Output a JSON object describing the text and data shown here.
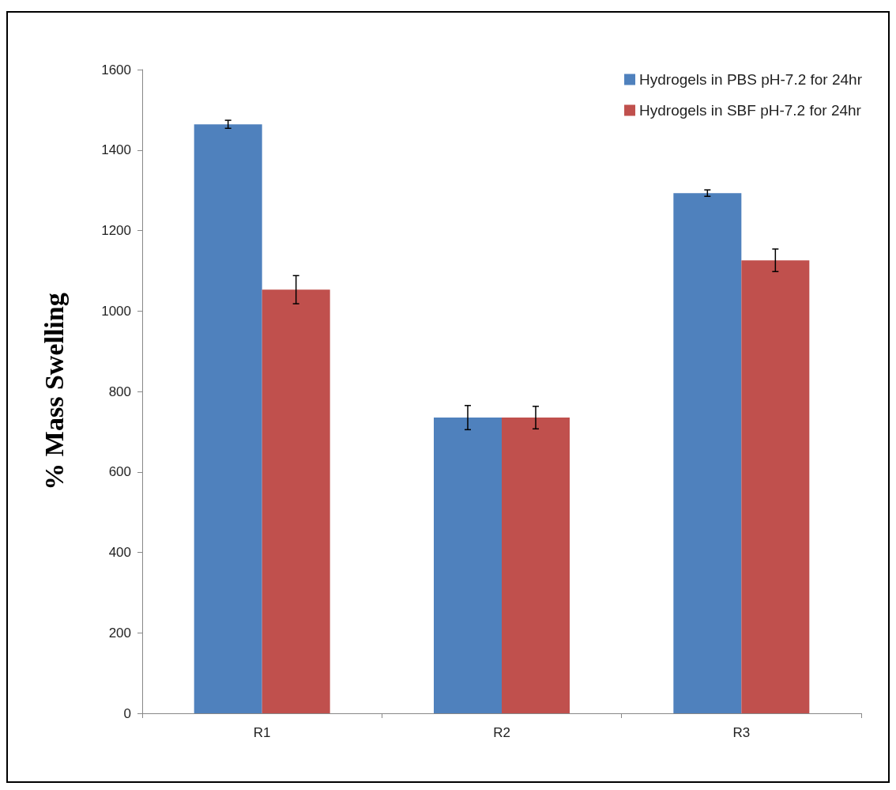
{
  "chart_data": {
    "type": "bar",
    "ylabel": "% Mass Swelling",
    "categories": [
      "R1",
      "R2",
      "R3"
    ],
    "series": [
      {
        "name": "Hydrogels in PBS pH-7.2 for 24hr",
        "color": "#4f81bd",
        "values": [
          1464,
          735,
          1293
        ],
        "errors": [
          10,
          30,
          8
        ]
      },
      {
        "name": "Hydrogels in SBF pH-7.2 for 24hr",
        "color": "#c0504d",
        "values": [
          1053,
          735,
          1126
        ],
        "errors": [
          35,
          28,
          28
        ]
      }
    ],
    "ylim": [
      0,
      1600
    ],
    "yticks": [
      0,
      200,
      400,
      600,
      800,
      1000,
      1200,
      1400,
      1600
    ],
    "grid": false,
    "legend": "top right"
  }
}
